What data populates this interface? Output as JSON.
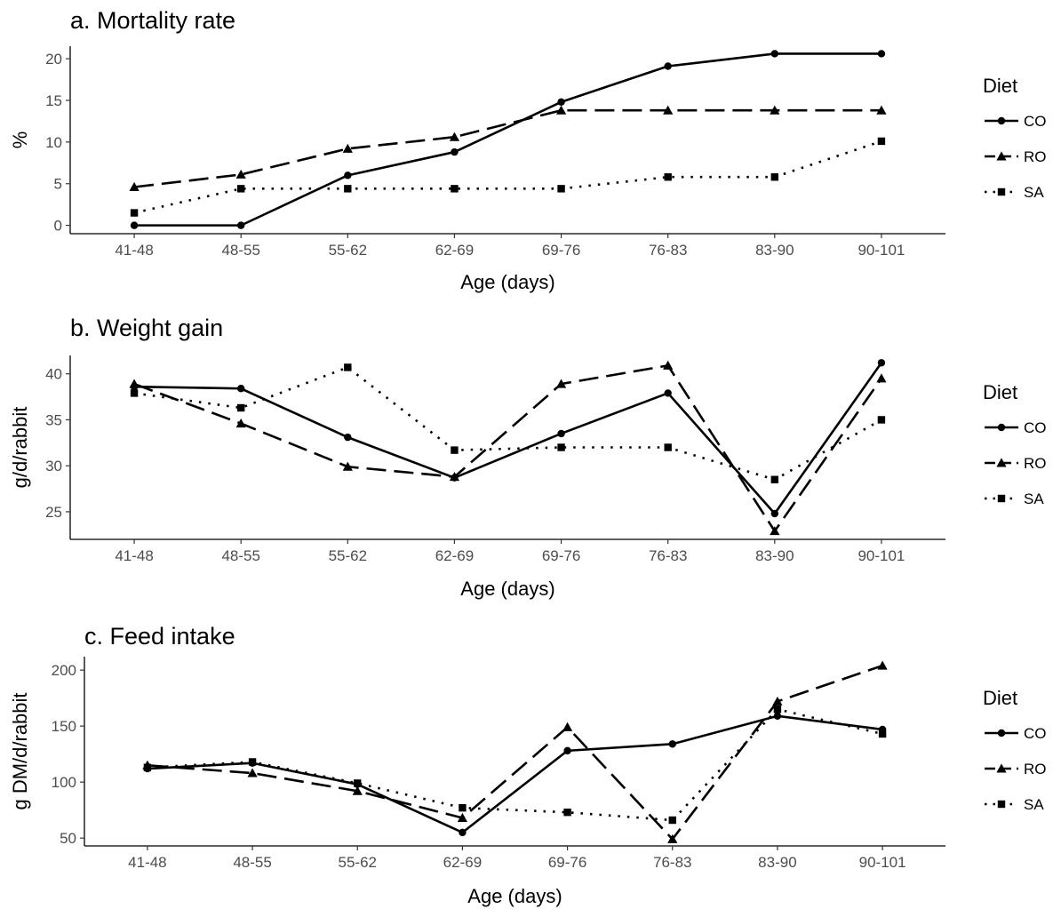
{
  "legend": {
    "title": "Diet",
    "items": [
      "CO",
      "RO",
      "SA"
    ]
  },
  "chart_data": [
    {
      "type": "line",
      "title": "a. Mortality rate",
      "xlabel": "Age (days)",
      "ylabel": "%",
      "categories": [
        "41-48",
        "48-55",
        "55-62",
        "62-69",
        "69-76",
        "76-83",
        "83-90",
        "90-101"
      ],
      "ylim": [
        -1,
        21.5
      ],
      "yticks": [
        0,
        5,
        10,
        15,
        20
      ],
      "grid": false,
      "legend_position": "right",
      "series": [
        {
          "name": "CO",
          "marker": "circle",
          "dash": "solid",
          "values": [
            0,
            0,
            6,
            8.8,
            14.8,
            19.1,
            20.6,
            20.6
          ]
        },
        {
          "name": "RO",
          "marker": "triangle",
          "dash": "longdash",
          "values": [
            4.6,
            6.1,
            9.2,
            10.6,
            13.8,
            13.8,
            13.8,
            13.8
          ]
        },
        {
          "name": "SA",
          "marker": "square",
          "dash": "dotted",
          "values": [
            1.5,
            4.4,
            4.4,
            4.4,
            4.4,
            5.8,
            5.8,
            10.1
          ]
        }
      ]
    },
    {
      "type": "line",
      "title": "b. Weight gain",
      "xlabel": "Age (days)",
      "ylabel": "g/d/rabbit",
      "categories": [
        "41-48",
        "48-55",
        "55-62",
        "62-69",
        "69-76",
        "76-83",
        "83-90",
        "90-101"
      ],
      "ylim": [
        22,
        42
      ],
      "yticks": [
        25,
        30,
        35,
        40
      ],
      "grid": false,
      "legend_position": "right",
      "series": [
        {
          "name": "CO",
          "marker": "circle",
          "dash": "solid",
          "values": [
            38.6,
            38.4,
            33.1,
            28.7,
            33.5,
            37.9,
            24.8,
            41.2
          ]
        },
        {
          "name": "RO",
          "marker": "triangle",
          "dash": "longdash",
          "values": [
            38.9,
            34.6,
            29.9,
            28.8,
            38.9,
            40.9,
            22.9,
            39.5
          ]
        },
        {
          "name": "SA",
          "marker": "square",
          "dash": "dotted",
          "values": [
            37.9,
            36.3,
            40.7,
            31.7,
            32.0,
            32.0,
            28.5,
            35.0
          ]
        }
      ]
    },
    {
      "type": "line",
      "title": "c. Feed intake",
      "xlabel": "Age (days)",
      "ylabel": "g DM/d/rabbit",
      "categories": [
        "41-48",
        "48-55",
        "55-62",
        "62-69",
        "69-76",
        "76-83",
        "83-90",
        "90-101"
      ],
      "ylim": [
        43,
        212
      ],
      "yticks": [
        50,
        100,
        150,
        200
      ],
      "grid": false,
      "legend_position": "right",
      "series": [
        {
          "name": "CO",
          "marker": "circle",
          "dash": "solid",
          "values": [
            112,
            117,
            98,
            55,
            128,
            134,
            159,
            147
          ]
        },
        {
          "name": "RO",
          "marker": "triangle",
          "dash": "longdash",
          "values": [
            115,
            108,
            92,
            68,
            149,
            49,
            172,
            204
          ]
        },
        {
          "name": "SA",
          "marker": "square",
          "dash": "dotted",
          "values": [
            113,
            118,
            99,
            77,
            73,
            66,
            165,
            143
          ]
        }
      ]
    }
  ]
}
